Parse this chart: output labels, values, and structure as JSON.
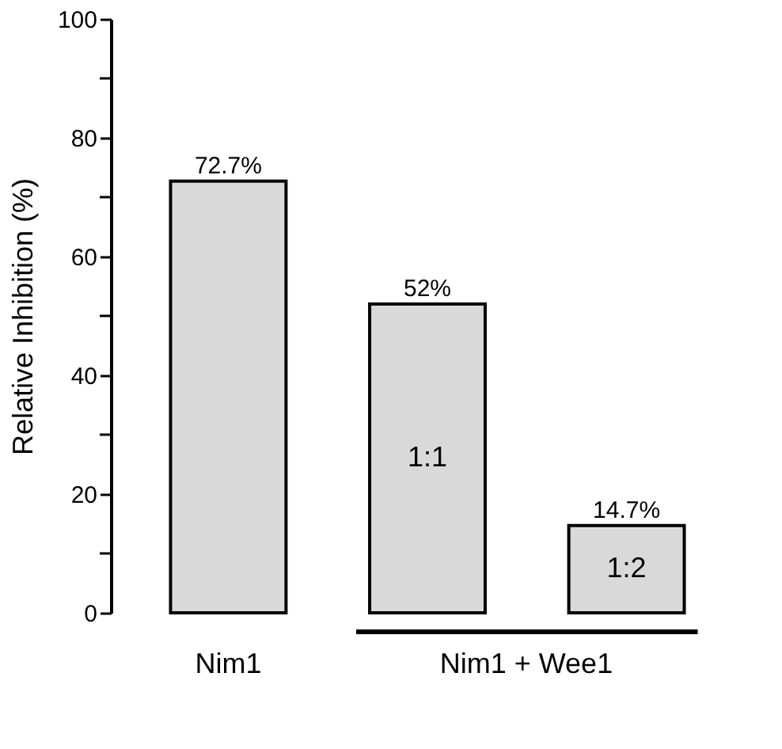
{
  "chart_data": {
    "type": "bar",
    "ylabel": "Relative Inhibition (%)",
    "categories": [
      "Nim1",
      "1:1",
      "1:2"
    ],
    "values": [
      72.7,
      52,
      14.7
    ],
    "value_labels": [
      "72.7%",
      "52%",
      "14.7%"
    ],
    "color": "#d9d9d9",
    "ylim": [
      0,
      100
    ],
    "yticks": [
      0,
      {
        "value": 10,
        "label": null
      },
      20,
      {
        "value": 30,
        "label": null
      },
      40,
      {
        "value": 50,
        "label": null
      },
      60,
      {
        "value": 70,
        "label": null
      },
      80,
      {
        "value": 90,
        "label": null
      },
      100
    ],
    "annotations": [
      "Nim1 + Wee1"
    ],
    "grid": false
  }
}
